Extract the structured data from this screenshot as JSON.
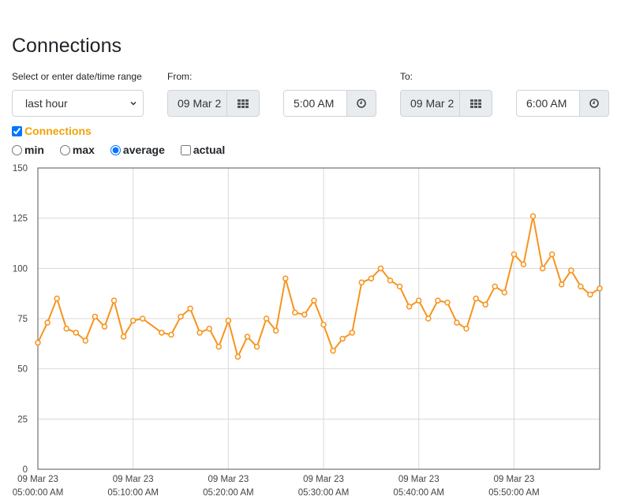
{
  "page": {
    "title": "Connections"
  },
  "range": {
    "label": "Select or enter date/time range",
    "value": "last hour"
  },
  "from": {
    "label": "From:",
    "date": "09 Mar 2",
    "time": "5:00 AM"
  },
  "to": {
    "label": "To:",
    "date": "09 Mar 2",
    "time": "6:00 AM"
  },
  "series_toggle": {
    "label": "Connections",
    "checked": true
  },
  "aggregation": [
    {
      "label": "min",
      "type": "radio",
      "checked": false
    },
    {
      "label": "max",
      "type": "radio",
      "checked": false
    },
    {
      "label": "average",
      "type": "radio",
      "checked": true
    },
    {
      "label": "actual",
      "type": "checkbox",
      "checked": false
    }
  ],
  "colors": {
    "series": "#f7941d",
    "title_accent": "#f0a30a",
    "grid": "#d9d9d9"
  },
  "icons": {
    "date": "calendar-grid-icon",
    "time": "clock-icon",
    "select": "chevron-down-icon"
  },
  "chart_data": {
    "type": "line",
    "ylim": [
      0,
      150
    ],
    "yticks": [
      0,
      25,
      50,
      75,
      100,
      125,
      150
    ],
    "xlim": [
      0,
      59
    ],
    "xticks": [
      {
        "x": 0,
        "line1": "09 Mar 23",
        "line2": "05:00:00 AM"
      },
      {
        "x": 10,
        "line1": "09 Mar 23",
        "line2": "05:10:00 AM"
      },
      {
        "x": 20,
        "line1": "09 Mar 23",
        "line2": "05:20:00 AM"
      },
      {
        "x": 30,
        "line1": "09 Mar 23",
        "line2": "05:30:00 AM"
      },
      {
        "x": 40,
        "line1": "09 Mar 23",
        "line2": "05:40:00 AM"
      },
      {
        "x": 50,
        "line1": "09 Mar 23",
        "line2": "05:50:00 AM"
      }
    ],
    "grid": true,
    "series": [
      {
        "color": "#f7941d",
        "x": [
          0,
          1,
          2,
          3,
          4,
          5,
          6,
          7,
          8,
          9,
          10,
          11,
          13,
          14,
          15,
          16,
          17,
          18,
          19,
          20,
          21,
          22,
          23,
          24,
          25,
          26,
          27,
          28,
          29,
          30,
          31,
          32,
          33,
          34,
          35,
          36,
          37,
          38,
          39,
          40,
          41,
          42,
          43,
          44,
          45,
          46,
          47,
          48,
          49,
          50,
          51,
          52,
          53,
          54,
          55,
          56,
          57,
          58,
          59
        ],
        "y": [
          63,
          73,
          85,
          70,
          68,
          64,
          76,
          71,
          84,
          66,
          74,
          75,
          68,
          67,
          76,
          80,
          68,
          70,
          61,
          74,
          56,
          66,
          61,
          75,
          69,
          95,
          78,
          77,
          84,
          72,
          59,
          65,
          68,
          93,
          95,
          100,
          94,
          91,
          81,
          84,
          75,
          84,
          83,
          73,
          70,
          85,
          82,
          91,
          88,
          107,
          102,
          126,
          100,
          107,
          92,
          99,
          91,
          87,
          90
        ]
      }
    ]
  }
}
